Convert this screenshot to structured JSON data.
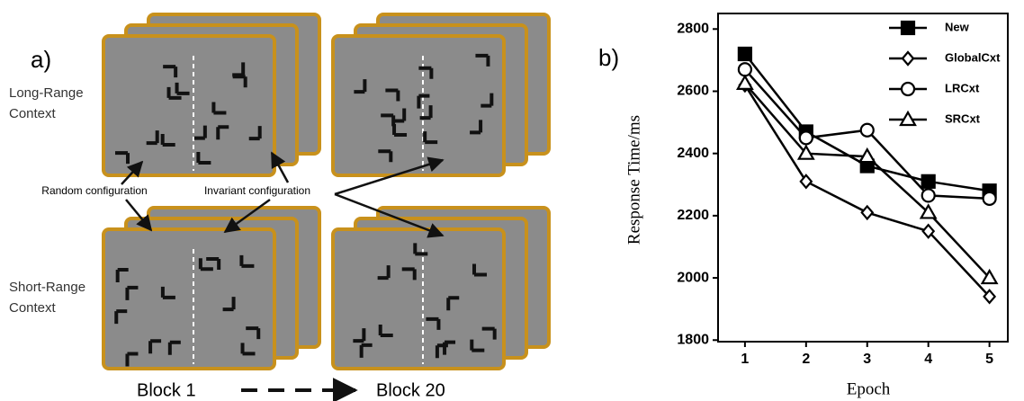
{
  "panel_a": {
    "label": "a)",
    "row_labels": [
      [
        "Long-Range",
        "Context"
      ],
      [
        "Short-Range",
        "Context"
      ]
    ],
    "annotations": [
      "Random configuration",
      "Invariant configuration"
    ],
    "block_start": "Block 1",
    "block_end": "Block 20"
  },
  "panel_b": {
    "label": "b)"
  },
  "chart_data": {
    "type": "line",
    "x_label": "Epoch",
    "y_label": "Response Time/ms",
    "x": [
      1,
      2,
      3,
      4,
      5
    ],
    "xlim": [
      0.56,
      5.3
    ],
    "xticks": [
      1,
      2,
      3,
      4,
      5
    ],
    "ylim": [
      1795,
      2850
    ],
    "yticks": [
      1800,
      2000,
      2200,
      2400,
      2600,
      2800
    ],
    "legend": "upper right",
    "grid": false,
    "series": [
      {
        "name": "New",
        "color": "#000000",
        "marker": "square-filled",
        "values": [
          2720,
          2470,
          2360,
          2310,
          2280
        ]
      },
      {
        "name": "GlobalCxt",
        "color": "#000000",
        "marker": "diamond-open",
        "values": [
          2620,
          2310,
          2210,
          2150,
          1940
        ]
      },
      {
        "name": "LRCxt",
        "color": "#000000",
        "marker": "circle-open",
        "values": [
          2670,
          2450,
          2475,
          2265,
          2255
        ]
      },
      {
        "name": "SRCxt",
        "color": "#000000",
        "marker": "triangle-open",
        "values": [
          2625,
          2400,
          2390,
          2210,
          2000
        ]
      }
    ]
  }
}
